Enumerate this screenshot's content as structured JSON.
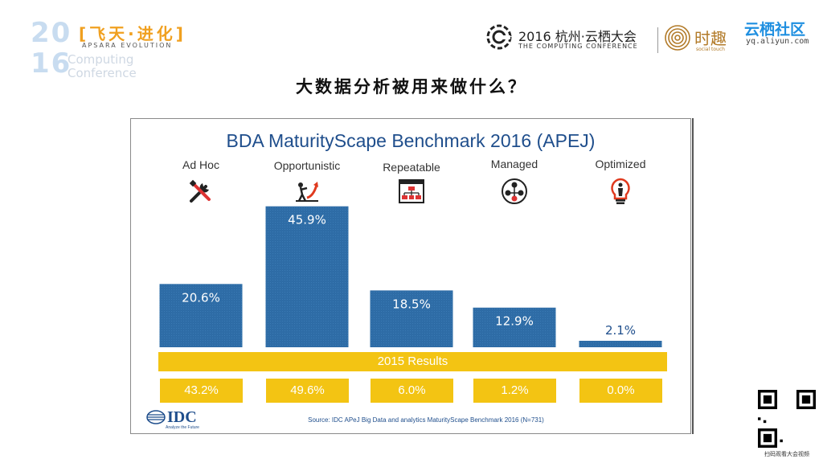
{
  "header": {
    "logo_year_top": "20",
    "logo_year_bottom": "16",
    "logo_slogan": "[飞天·进化]",
    "logo_evolution": "APSARA EVOLUTION",
    "logo_computing": "Computing\nConference",
    "conf_title": "2016 杭州·云栖大会",
    "conf_subtitle": "THE COMPUTING CONFERENCE",
    "shiqu_text": "时趣",
    "shiqu_sub": "social touch",
    "yunqi_title": "云栖社区",
    "yunqi_url": "yq.aliyun.com"
  },
  "slide": {
    "heading": "大数据分析被用来做什么？"
  },
  "chart_data": {
    "type": "bar",
    "title": "BDA MaturityScape Benchmark 2016 (APEJ)",
    "categories": [
      "Ad Hoc",
      "Opportunistic",
      "Repeatable",
      "Managed",
      "Optimized"
    ],
    "icons": [
      "tools-icon",
      "climber-icon",
      "flowchart-icon",
      "network-people-icon",
      "lightbulb-person-icon"
    ],
    "series": [
      {
        "values": [
          20.6,
          45.9,
          18.5,
          12.9,
          2.1
        ],
        "labels": [
          "20.6%",
          "45.9%",
          "18.5%",
          "12.9%",
          "2.1%"
        ],
        "color": "#2e6ca6"
      }
    ],
    "previous": {
      "label": "2015 Results",
      "values": [
        43.2,
        49.6,
        6.0,
        1.2,
        0.0
      ],
      "labels": [
        "43.2%",
        "49.6%",
        "6.0%",
        "1.2%",
        "0.0%"
      ],
      "color": "#f3c413"
    },
    "ylim": [
      0,
      50
    ],
    "grid": false,
    "source": "Source: IDC APeJ Big Data and analytics MaturityScape Benchmark 2016 (N=731)"
  },
  "footer": {
    "idc_logo_text": "IDC",
    "idc_logo_sub": "Analyze the Future",
    "qr_caption": "扫码观看大会视频"
  },
  "colors": {
    "bar": "#2e6ca6",
    "band": "#f3c413",
    "title": "#1f4e8c",
    "accent_orange": "#f0a020"
  }
}
